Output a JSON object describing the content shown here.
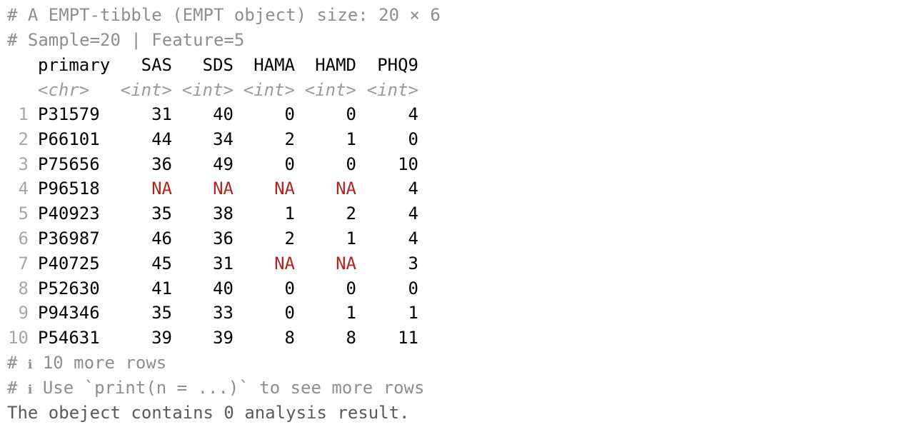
{
  "header": {
    "line1": "# A EMPT-tibble (EMPT object) size: 20 × 6",
    "line2": "# Sample=20 | Feature=5"
  },
  "table": {
    "columns": [
      "primary",
      "SAS",
      "SDS",
      "HAMA",
      "HAMD",
      "PHQ9"
    ],
    "types": [
      "<chr>",
      "<int>",
      "<int>",
      "<int>",
      "<int>",
      "<int>"
    ],
    "rows": [
      {
        "n": "1",
        "cells": [
          "P31579",
          "31",
          "40",
          "0",
          "0",
          "4"
        ]
      },
      {
        "n": "2",
        "cells": [
          "P66101",
          "44",
          "34",
          "2",
          "1",
          "0"
        ]
      },
      {
        "n": "3",
        "cells": [
          "P75656",
          "36",
          "49",
          "0",
          "0",
          "10"
        ]
      },
      {
        "n": "4",
        "cells": [
          "P96518",
          "NA",
          "NA",
          "NA",
          "NA",
          "4"
        ]
      },
      {
        "n": "5",
        "cells": [
          "P40923",
          "35",
          "38",
          "1",
          "2",
          "4"
        ]
      },
      {
        "n": "6",
        "cells": [
          "P36987",
          "46",
          "36",
          "2",
          "1",
          "4"
        ]
      },
      {
        "n": "7",
        "cells": [
          "P40725",
          "45",
          "31",
          "NA",
          "NA",
          "3"
        ]
      },
      {
        "n": "8",
        "cells": [
          "P52630",
          "41",
          "40",
          "0",
          "0",
          "0"
        ]
      },
      {
        "n": "9",
        "cells": [
          "P94346",
          "35",
          "33",
          "0",
          "1",
          "1"
        ]
      },
      {
        "n": "10",
        "cells": [
          "P54631",
          "39",
          "39",
          "8",
          "8",
          "11"
        ]
      }
    ]
  },
  "footer": {
    "more_rows_prefix": "# ",
    "info_icon": "ℹ",
    "more_rows_text": " 10 more rows",
    "hint_prefix": "# ",
    "hint_text": " Use `print(n = ...)` to see more rows",
    "summary": "The obeject contains 0 analysis result."
  },
  "colors": {
    "na": "#b3241c",
    "comment": "#8e8e8e",
    "type": "#9a9a9a",
    "row_number": "#a7a7a7"
  }
}
